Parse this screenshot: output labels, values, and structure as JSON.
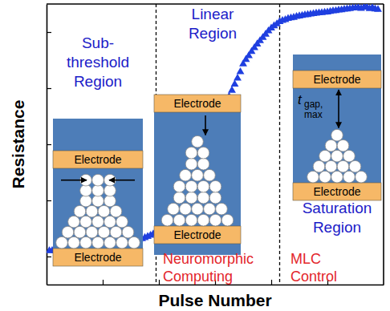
{
  "chart_data": {
    "type": "scatter",
    "x_label": "Pulse Number",
    "y_label": "Resistance",
    "x": [
      1,
      2,
      3,
      4,
      5,
      6,
      7,
      8,
      9,
      10,
      11,
      12,
      13,
      14,
      15,
      16,
      17,
      18,
      19,
      20,
      21,
      22,
      23,
      24,
      25,
      26,
      27,
      28,
      29,
      30,
      31,
      32,
      33,
      34,
      35,
      36,
      37,
      38,
      39,
      40,
      41,
      42,
      43,
      44,
      45,
      46,
      47,
      48,
      49,
      50,
      51,
      52,
      53,
      54,
      55,
      56,
      57,
      58,
      59,
      60,
      61,
      62,
      63,
      64,
      65,
      66,
      67,
      68,
      69,
      70,
      71,
      72,
      73,
      74,
      75,
      76,
      77,
      78,
      79,
      80,
      81,
      82,
      83,
      84,
      85,
      86,
      87,
      88,
      89,
      90,
      91,
      92,
      93,
      94,
      95,
      96,
      97,
      98,
      99,
      100,
      101,
      102,
      103,
      104,
      105,
      106,
      107,
      108,
      109,
      110,
      111,
      112,
      113,
      114,
      115,
      116,
      117,
      118
    ],
    "values": [
      12.0,
      12.1,
      12.0,
      12.2,
      12.1,
      12.2,
      12.3,
      12.2,
      12.3,
      12.4,
      12.4,
      12.5,
      12.4,
      12.6,
      12.6,
      12.7,
      12.7,
      12.8,
      12.9,
      13.0,
      13.1,
      13.3,
      13.4,
      13.6,
      13.8,
      14.0,
      14.2,
      14.4,
      14.7,
      15.0,
      15.3,
      15.6,
      16.0,
      16.3,
      16.7,
      17.1,
      17.5,
      18.0,
      18.6,
      19.2,
      19.8,
      20.5,
      21.2,
      22.0,
      22.9,
      24.0,
      25.3,
      26.8,
      28.4,
      30.0,
      31.8,
      33.6,
      35.5,
      37.6,
      40.0,
      42.6,
      45.3,
      48.0,
      51.0,
      54.0,
      56.8,
      59.4,
      62.0,
      64.6,
      67.0,
      69.2,
      71.4,
      73.5,
      75.8,
      78.6,
      80.2,
      81.5,
      83.0,
      84.4,
      85.7,
      86.9,
      88.0,
      89.2,
      90.4,
      91.4,
      92.2,
      92.9,
      93.7,
      94.1,
      94.4,
      94.8,
      95.0,
      95.2,
      95.5,
      95.7,
      95.9,
      96.1,
      96.2,
      96.4,
      96.5,
      96.7,
      96.8,
      96.9,
      97.0,
      97.1,
      97.3,
      97.5,
      97.6,
      97.8,
      97.9,
      98.1,
      98.2,
      98.3,
      98.5,
      98.6,
      98.7,
      98.4,
      98.8,
      98.9,
      98.3,
      98.7,
      98.2,
      98.0
    ],
    "color": "#1f3fe0",
    "marker": "triangle",
    "xlim": [
      0,
      120
    ],
    "ylim": [
      0,
      100
    ],
    "xticks": [
      20,
      40,
      60,
      80,
      100
    ],
    "yticks": [
      10,
      30,
      50,
      70,
      90
    ],
    "tick_labels": false,
    "region_boundaries": [
      39,
      83
    ],
    "region_labels": [
      [
        "Sub-",
        "threshold",
        "Region"
      ],
      [
        "Linear",
        "Region"
      ],
      [
        "Saturation",
        "Region"
      ]
    ],
    "application_labels": [
      [
        "Neuromorphic",
        "Computing"
      ],
      [
        "MLC",
        "Control"
      ]
    ],
    "insets": [
      {
        "top": "Electrode",
        "bottom": "Electrode"
      },
      {
        "top": "Electrode",
        "bottom": "Electrode"
      },
      {
        "top": "Electrode",
        "bottom": "Electrode",
        "gap_label": {
          "base": "t",
          "sub": [
            "gap,",
            "max"
          ]
        }
      }
    ]
  }
}
